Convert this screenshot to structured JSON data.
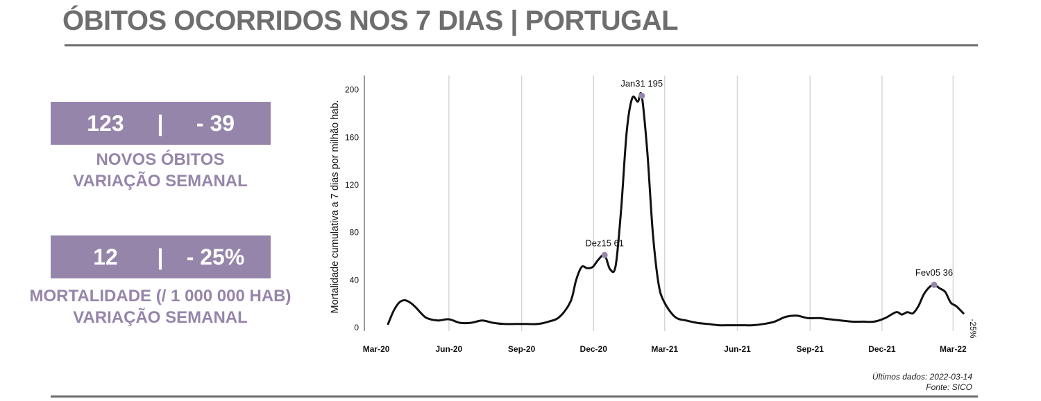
{
  "header": {
    "title": "ÓBITOS OCORRIDOS NOS 7 DIAS | PORTUGAL"
  },
  "stats": [
    {
      "value": "123",
      "separator": "|",
      "change": "- 39",
      "caption_line1": "NOVOS ÓBITOS",
      "caption_line2": "VARIAÇÃO SEMANAL"
    },
    {
      "value": "12",
      "separator": "|",
      "change": "- 25%",
      "caption_line1": "MORTALIDADE (/ 1 000 000 HAB)",
      "caption_line2": "VARIAÇÃO SEMANAL"
    }
  ],
  "footer": {
    "last_data": "Últimos dados: 2022-03-14",
    "source": "Fonte: SICO"
  },
  "colors": {
    "accent": "#9685aa",
    "line": "#111111",
    "grid": "#d6d6d6",
    "title": "#6e6e6e"
  },
  "chart_data": {
    "type": "line",
    "ylabel": "Mortalidade cumulativa a 7 dias por milhão hab.",
    "xlabel": "",
    "ylim": [
      0,
      200
    ],
    "yticks": [
      0,
      40,
      80,
      120,
      160,
      200
    ],
    "xticks": [
      {
        "date": "2020-03-01",
        "label": "Mar-20"
      },
      {
        "date": "2020-06-01",
        "label": "Jun-20"
      },
      {
        "date": "2020-09-01",
        "label": "Sep-20"
      },
      {
        "date": "2020-12-01",
        "label": "Dec-20"
      },
      {
        "date": "2021-03-01",
        "label": "Mar-21"
      },
      {
        "date": "2021-06-01",
        "label": "Jun-21"
      },
      {
        "date": "2021-09-01",
        "label": "Sep-21"
      },
      {
        "date": "2021-12-01",
        "label": "Dec-21"
      },
      {
        "date": "2022-03-01",
        "label": "Mar-22"
      }
    ],
    "xlim": [
      "2020-02-15",
      "2022-03-20"
    ],
    "grid": "vertical",
    "series": [
      {
        "x": [
          "2020-03-16",
          "2020-03-23",
          "2020-03-30",
          "2020-04-06",
          "2020-04-13",
          "2020-04-20",
          "2020-04-27",
          "2020-05-04",
          "2020-05-18",
          "2020-06-01",
          "2020-06-15",
          "2020-06-29",
          "2020-07-13",
          "2020-07-27",
          "2020-08-10",
          "2020-08-24",
          "2020-09-07",
          "2020-09-21",
          "2020-10-05",
          "2020-10-19",
          "2020-11-02",
          "2020-11-09",
          "2020-11-16",
          "2020-11-23",
          "2020-11-30",
          "2020-12-07",
          "2020-12-15",
          "2020-12-22",
          "2020-12-29",
          "2021-01-05",
          "2021-01-12",
          "2021-01-19",
          "2021-01-26",
          "2021-01-31",
          "2021-02-07",
          "2021-02-14",
          "2021-02-21",
          "2021-02-28",
          "2021-03-14",
          "2021-03-28",
          "2021-04-11",
          "2021-04-25",
          "2021-05-09",
          "2021-05-23",
          "2021-06-06",
          "2021-06-20",
          "2021-07-04",
          "2021-07-18",
          "2021-08-01",
          "2021-08-15",
          "2021-08-29",
          "2021-09-12",
          "2021-09-26",
          "2021-10-10",
          "2021-10-24",
          "2021-11-07",
          "2021-11-21",
          "2021-12-05",
          "2021-12-19",
          "2021-12-26",
          "2022-01-02",
          "2022-01-09",
          "2022-01-16",
          "2022-01-23",
          "2022-01-30",
          "2022-02-05",
          "2022-02-12",
          "2022-02-19",
          "2022-02-26",
          "2022-03-05",
          "2022-03-14"
        ],
        "y": [
          3,
          14,
          21,
          23,
          21,
          17,
          12,
          8,
          6,
          7,
          4,
          4,
          6,
          4,
          3,
          3,
          3,
          3,
          5,
          9,
          22,
          40,
          51,
          50,
          51,
          57,
          61,
          49,
          52,
          100,
          165,
          193,
          190,
          195,
          148,
          80,
          38,
          22,
          9,
          6,
          4,
          3,
          2,
          2,
          2,
          2,
          3,
          5,
          9,
          10,
          8,
          8,
          7,
          6,
          5,
          5,
          5,
          8,
          13,
          11,
          13,
          12,
          18,
          28,
          34,
          36,
          33,
          30,
          21,
          18,
          12
        ]
      }
    ],
    "annotations": [
      {
        "x": "2020-12-15",
        "y": 61,
        "label": "Dez15 61"
      },
      {
        "x": "2021-01-31",
        "y": 195,
        "label": "Jan31 195"
      },
      {
        "x": "2022-02-05",
        "y": 36,
        "label": "Fev05 36"
      }
    ],
    "end_label": "-25%"
  }
}
